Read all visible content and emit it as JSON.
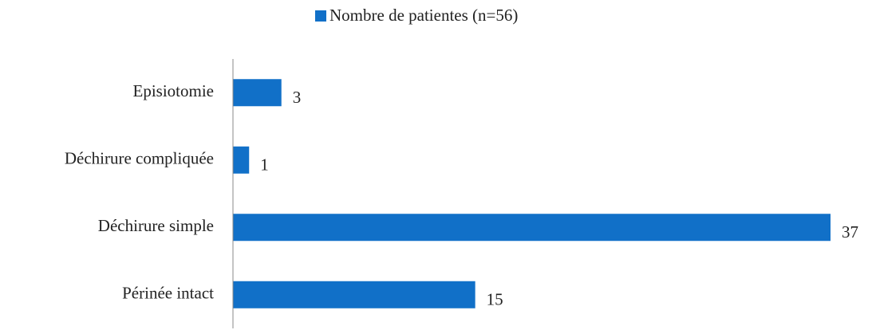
{
  "chart_data": {
    "type": "barh",
    "categories": [
      "Episiotomie",
      "Déchirure compliquée",
      "Déchirure simple",
      "Périnée intact"
    ],
    "series": [
      {
        "name": "Nombre de patientes (n=56)",
        "color": "#1170c8",
        "values": [
          3,
          1,
          37,
          15
        ]
      }
    ],
    "legend": "top"
  }
}
